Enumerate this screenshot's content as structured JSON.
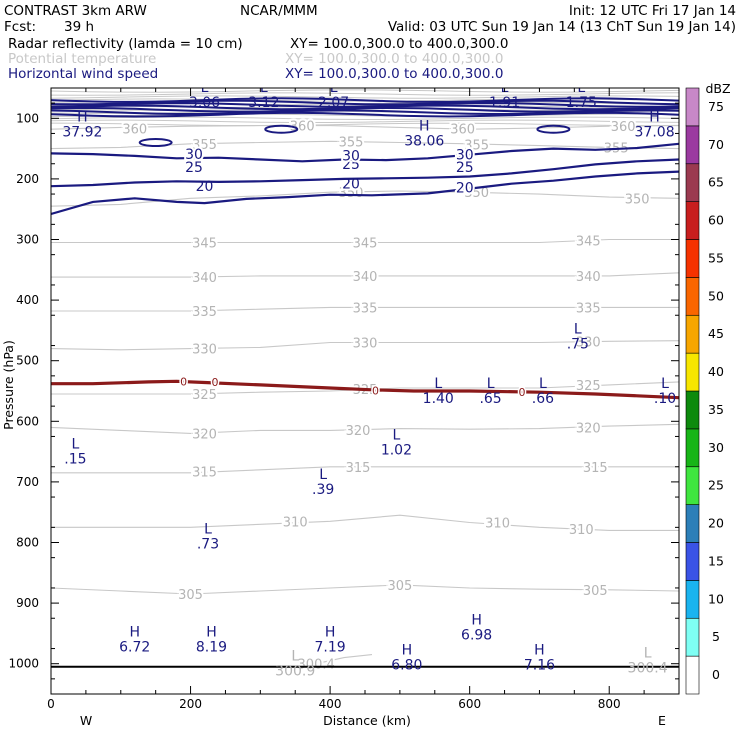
{
  "header": {
    "title": "CONTRAST  3km ARW",
    "org": "NCAR/MMM",
    "init": "Init: 12 UTC Fri 17 Jan 14",
    "fcst_label": "Fcst:",
    "fcst_value": "39 h",
    "valid": "Valid: 03 UTC Sun 19 Jan 14 (13 ChT Sun 19 Jan 14)"
  },
  "fields": [
    {
      "name": "Radar reflectivity (lamda = 10 cm)",
      "xy": "XY= 100.0,300.0 to 400.0,300.0",
      "color": "#000000"
    },
    {
      "name": "Potential temperature",
      "xy": "XY= 100.0,300.0 to 400.0,300.0",
      "color": "#c8c8c8"
    },
    {
      "name": "Horizontal wind speed",
      "xy": "XY= 100.0,300.0 to 400.0,300.0",
      "color": "#1a1a80"
    }
  ],
  "chart_data": {
    "type": "contour-cross-section",
    "xlabel": "Distance (km)",
    "ylabel": "Pressure (hPa)",
    "xlim": [
      0,
      900
    ],
    "ylim": [
      1050,
      50
    ],
    "x_ticks": [
      0,
      200,
      400,
      600,
      800
    ],
    "y_ticks": [
      100,
      200,
      300,
      400,
      500,
      600,
      700,
      800,
      900,
      1000
    ],
    "x_end_labels": {
      "left": "W",
      "right": "E"
    },
    "colorbar": {
      "units": "dBZ",
      "levels": [
        0,
        5,
        10,
        15,
        20,
        25,
        30,
        35,
        40,
        45,
        50,
        55,
        60,
        65,
        70,
        75
      ],
      "colors": [
        "#ffffff",
        "#7ffff4",
        "#1ab4ef",
        "#3a53e6",
        "#2c7fb8",
        "#3fe63f",
        "#17b517",
        "#0d8a0d",
        "#f7e600",
        "#f7a600",
        "#fa6600",
        "#f53200",
        "#c81e1e",
        "#9b3a50",
        "#9b3aa0",
        "#c888c8"
      ]
    },
    "wind_speed_contours": [
      {
        "value": 20,
        "points": [
          [
            0,
            258
          ],
          [
            60,
            238
          ],
          [
            120,
            232
          ],
          [
            180,
            238
          ],
          [
            220,
            240
          ],
          [
            280,
            233
          ],
          [
            340,
            230
          ],
          [
            400,
            226
          ],
          [
            460,
            227
          ],
          [
            540,
            224
          ],
          [
            600,
            216
          ],
          [
            660,
            208
          ],
          [
            720,
            203
          ],
          [
            780,
            196
          ],
          [
            840,
            191
          ],
          [
            900,
            188
          ]
        ],
        "labels": [
          [
            220,
            212
          ],
          [
            430,
            208
          ],
          [
            593,
            214
          ]
        ]
      },
      {
        "value": 25,
        "points": [
          [
            0,
            212
          ],
          [
            60,
            210
          ],
          [
            120,
            206
          ],
          [
            180,
            204
          ],
          [
            240,
            205
          ],
          [
            300,
            204
          ],
          [
            360,
            202
          ],
          [
            420,
            200
          ],
          [
            480,
            199
          ],
          [
            540,
            198
          ],
          [
            600,
            196
          ],
          [
            660,
            191
          ],
          [
            720,
            184
          ],
          [
            780,
            176
          ],
          [
            840,
            171
          ],
          [
            900,
            168
          ]
        ],
        "labels": [
          [
            205,
            180
          ],
          [
            430,
            175
          ],
          [
            593,
            180
          ]
        ]
      },
      {
        "value": 30,
        "points": [
          [
            0,
            158
          ],
          [
            60,
            159
          ],
          [
            120,
            162
          ],
          [
            180,
            166
          ],
          [
            240,
            165
          ],
          [
            300,
            168
          ],
          [
            360,
            171
          ],
          [
            420,
            168
          ],
          [
            480,
            169
          ],
          [
            540,
            166
          ],
          [
            600,
            160
          ],
          [
            660,
            154
          ],
          [
            720,
            150
          ],
          [
            780,
            152
          ],
          [
            840,
            149
          ],
          [
            900,
            142
          ]
        ],
        "labels": [
          [
            205,
            159
          ],
          [
            430,
            161
          ],
          [
            593,
            160
          ]
        ]
      }
    ],
    "theta_contours": [
      {
        "value": 300.4,
        "points": [
          [
            380,
            1000
          ],
          [
            420,
            990
          ],
          [
            460,
            985
          ]
        ],
        "labels": [
          [
            380,
            1000
          ]
        ]
      },
      {
        "value": 305,
        "points": [
          [
            0,
            875
          ],
          [
            100,
            880
          ],
          [
            200,
            885
          ],
          [
            300,
            880
          ],
          [
            400,
            875
          ],
          [
            500,
            870
          ],
          [
            600,
            875
          ],
          [
            700,
            877
          ],
          [
            800,
            878
          ],
          [
            900,
            880
          ]
        ],
        "labels": [
          [
            200,
            885
          ],
          [
            500,
            870
          ],
          [
            780,
            878
          ]
        ]
      },
      {
        "value": 310,
        "points": [
          [
            0,
            775
          ],
          [
            100,
            775
          ],
          [
            200,
            775
          ],
          [
            300,
            770
          ],
          [
            400,
            765
          ],
          [
            500,
            755
          ],
          [
            600,
            767
          ],
          [
            700,
            775
          ],
          [
            800,
            780
          ],
          [
            900,
            780
          ]
        ],
        "labels": [
          [
            350,
            765
          ],
          [
            640,
            767
          ],
          [
            760,
            778
          ]
        ]
      },
      {
        "value": 315,
        "points": [
          [
            0,
            685
          ],
          [
            100,
            685
          ],
          [
            200,
            685
          ],
          [
            300,
            680
          ],
          [
            400,
            675
          ],
          [
            500,
            675
          ],
          [
            600,
            675
          ],
          [
            700,
            675
          ],
          [
            800,
            675
          ],
          [
            900,
            675
          ]
        ],
        "labels": [
          [
            220,
            683
          ],
          [
            440,
            675
          ],
          [
            780,
            675
          ]
        ]
      },
      {
        "value": 320,
        "points": [
          [
            0,
            610
          ],
          [
            100,
            615
          ],
          [
            200,
            620
          ],
          [
            300,
            615
          ],
          [
            400,
            615
          ],
          [
            500,
            612
          ],
          [
            600,
            613
          ],
          [
            700,
            612
          ],
          [
            800,
            608
          ],
          [
            900,
            605
          ]
        ],
        "labels": [
          [
            220,
            620
          ],
          [
            440,
            614
          ],
          [
            770,
            610
          ]
        ]
      },
      {
        "value": 325,
        "points": [
          [
            0,
            555
          ],
          [
            100,
            555
          ],
          [
            200,
            555
          ],
          [
            300,
            552
          ],
          [
            400,
            550
          ],
          [
            500,
            545
          ],
          [
            600,
            545
          ],
          [
            700,
            545
          ],
          [
            800,
            540
          ],
          [
            900,
            535
          ]
        ],
        "labels": [
          [
            220,
            555
          ],
          [
            450,
            547
          ],
          [
            770,
            540
          ]
        ]
      },
      {
        "value": 330,
        "points": [
          [
            0,
            480
          ],
          [
            100,
            482
          ],
          [
            200,
            480
          ],
          [
            300,
            478
          ],
          [
            400,
            470
          ],
          [
            500,
            470
          ],
          [
            600,
            470
          ],
          [
            700,
            470
          ],
          [
            800,
            468
          ],
          [
            900,
            467
          ]
        ],
        "labels": [
          [
            220,
            480
          ],
          [
            450,
            470
          ],
          [
            770,
            468
          ]
        ]
      },
      {
        "value": 335,
        "points": [
          [
            0,
            418
          ],
          [
            100,
            418
          ],
          [
            200,
            418
          ],
          [
            300,
            415
          ],
          [
            400,
            412
          ],
          [
            500,
            412
          ],
          [
            600,
            412
          ],
          [
            700,
            412
          ],
          [
            800,
            412
          ],
          [
            900,
            412
          ]
        ],
        "labels": [
          [
            220,
            418
          ],
          [
            450,
            412
          ],
          [
            770,
            412
          ]
        ]
      },
      {
        "value": 340,
        "points": [
          [
            0,
            362
          ],
          [
            100,
            362
          ],
          [
            200,
            362
          ],
          [
            300,
            360
          ],
          [
            400,
            360
          ],
          [
            500,
            360
          ],
          [
            600,
            360
          ],
          [
            700,
            360
          ],
          [
            800,
            360
          ],
          [
            900,
            355
          ]
        ],
        "labels": [
          [
            220,
            362
          ],
          [
            450,
            360
          ],
          [
            770,
            360
          ]
        ]
      },
      {
        "value": 345,
        "points": [
          [
            0,
            305
          ],
          [
            100,
            305
          ],
          [
            200,
            305
          ],
          [
            300,
            305
          ],
          [
            400,
            305
          ],
          [
            500,
            305
          ],
          [
            600,
            305
          ],
          [
            700,
            305
          ],
          [
            800,
            300
          ],
          [
            900,
            300
          ]
        ],
        "labels": [
          [
            220,
            305
          ],
          [
            450,
            305
          ],
          [
            770,
            302
          ]
        ]
      },
      {
        "value": 350,
        "points": [
          [
            0,
            245
          ],
          [
            100,
            242
          ],
          [
            200,
            232
          ],
          [
            300,
            228
          ],
          [
            400,
            222
          ],
          [
            500,
            220
          ],
          [
            600,
            222
          ],
          [
            700,
            225
          ],
          [
            800,
            230
          ],
          [
            900,
            232
          ]
        ],
        "labels": [
          [
            430,
            222
          ],
          [
            610,
            222
          ],
          [
            840,
            232
          ]
        ]
      },
      {
        "value": 355,
        "points": [
          [
            0,
            150
          ],
          [
            100,
            148
          ],
          [
            200,
            142
          ],
          [
            300,
            140
          ],
          [
            400,
            138
          ],
          [
            500,
            140
          ],
          [
            600,
            142
          ],
          [
            700,
            145
          ],
          [
            800,
            148
          ],
          [
            900,
            150
          ]
        ],
        "labels": [
          [
            220,
            142
          ],
          [
            430,
            138
          ],
          [
            610,
            143
          ],
          [
            810,
            148
          ]
        ]
      },
      {
        "value": 360,
        "points": [
          [
            0,
            118
          ],
          [
            100,
            115
          ],
          [
            200,
            113
          ],
          [
            300,
            112
          ],
          [
            400,
            112
          ],
          [
            500,
            115
          ],
          [
            600,
            118
          ],
          [
            700,
            116
          ],
          [
            800,
            113
          ],
          [
            900,
            112
          ]
        ],
        "labels": [
          [
            120,
            117
          ],
          [
            360,
            112
          ],
          [
            590,
            117
          ],
          [
            820,
            113
          ]
        ]
      }
    ],
    "zero_dbz_line": {
      "points": [
        [
          0,
          538
        ],
        [
          60,
          538
        ],
        [
          140,
          535
        ],
        [
          180,
          534
        ],
        [
          220,
          536
        ],
        [
          300,
          540
        ],
        [
          400,
          545
        ],
        [
          460,
          548
        ],
        [
          520,
          550
        ],
        [
          600,
          550
        ],
        [
          700,
          552
        ],
        [
          780,
          555
        ],
        [
          840,
          558
        ],
        [
          900,
          561
        ]
      ],
      "labels": [
        [
          190,
          534
        ],
        [
          235,
          535
        ],
        [
          465,
          549
        ],
        [
          675,
          552
        ]
      ]
    },
    "highs_lows": [
      {
        "type": "L",
        "x": 220,
        "p": 57,
        "value": "3.06"
      },
      {
        "type": "L",
        "x": 305,
        "p": 57,
        "value": "3.12"
      },
      {
        "type": "L",
        "x": 405,
        "p": 57,
        "value": "2.07"
      },
      {
        "type": "L",
        "x": 650,
        "p": 57,
        "value": "1.91"
      },
      {
        "type": "L",
        "x": 760,
        "p": 57,
        "value": "1.75"
      },
      {
        "type": "H",
        "x": 45,
        "p": 105,
        "value": "37.92"
      },
      {
        "type": "H",
        "x": 535,
        "p": 120,
        "value": "38.06"
      },
      {
        "type": "H",
        "x": 865,
        "p": 105,
        "value": "37.08"
      },
      {
        "type": "L",
        "x": 755,
        "p": 455,
        "value": ".75"
      },
      {
        "type": "L",
        "x": 555,
        "p": 545,
        "value": "1.40"
      },
      {
        "type": "L",
        "x": 630,
        "p": 545,
        "value": ".65"
      },
      {
        "type": "L",
        "x": 705,
        "p": 545,
        "value": ".66"
      },
      {
        "type": "L",
        "x": 880,
        "p": 545,
        "value": ".10"
      },
      {
        "type": "L",
        "x": 35,
        "p": 645,
        "value": ".15"
      },
      {
        "type": "L",
        "x": 495,
        "p": 630,
        "value": "1.02"
      },
      {
        "type": "L",
        "x": 390,
        "p": 695,
        "value": ".39"
      },
      {
        "type": "L",
        "x": 225,
        "p": 785,
        "value": ".73"
      },
      {
        "type": "H",
        "x": 120,
        "p": 955,
        "value": "6.72"
      },
      {
        "type": "H",
        "x": 230,
        "p": 955,
        "value": "8.19"
      },
      {
        "type": "H",
        "x": 400,
        "p": 955,
        "value": "7.19"
      },
      {
        "type": "H",
        "x": 610,
        "p": 935,
        "value": "6.98"
      },
      {
        "type": "H",
        "x": 510,
        "p": 985,
        "value": "6.80"
      },
      {
        "type": "H",
        "x": 700,
        "p": 985,
        "value": "7.16"
      },
      {
        "type": "L",
        "x": 350,
        "p": 995,
        "value": "300.9"
      },
      {
        "type": "L",
        "x": 855,
        "p": 990,
        "value": "300.4"
      }
    ],
    "surface_line_p": 1005
  }
}
